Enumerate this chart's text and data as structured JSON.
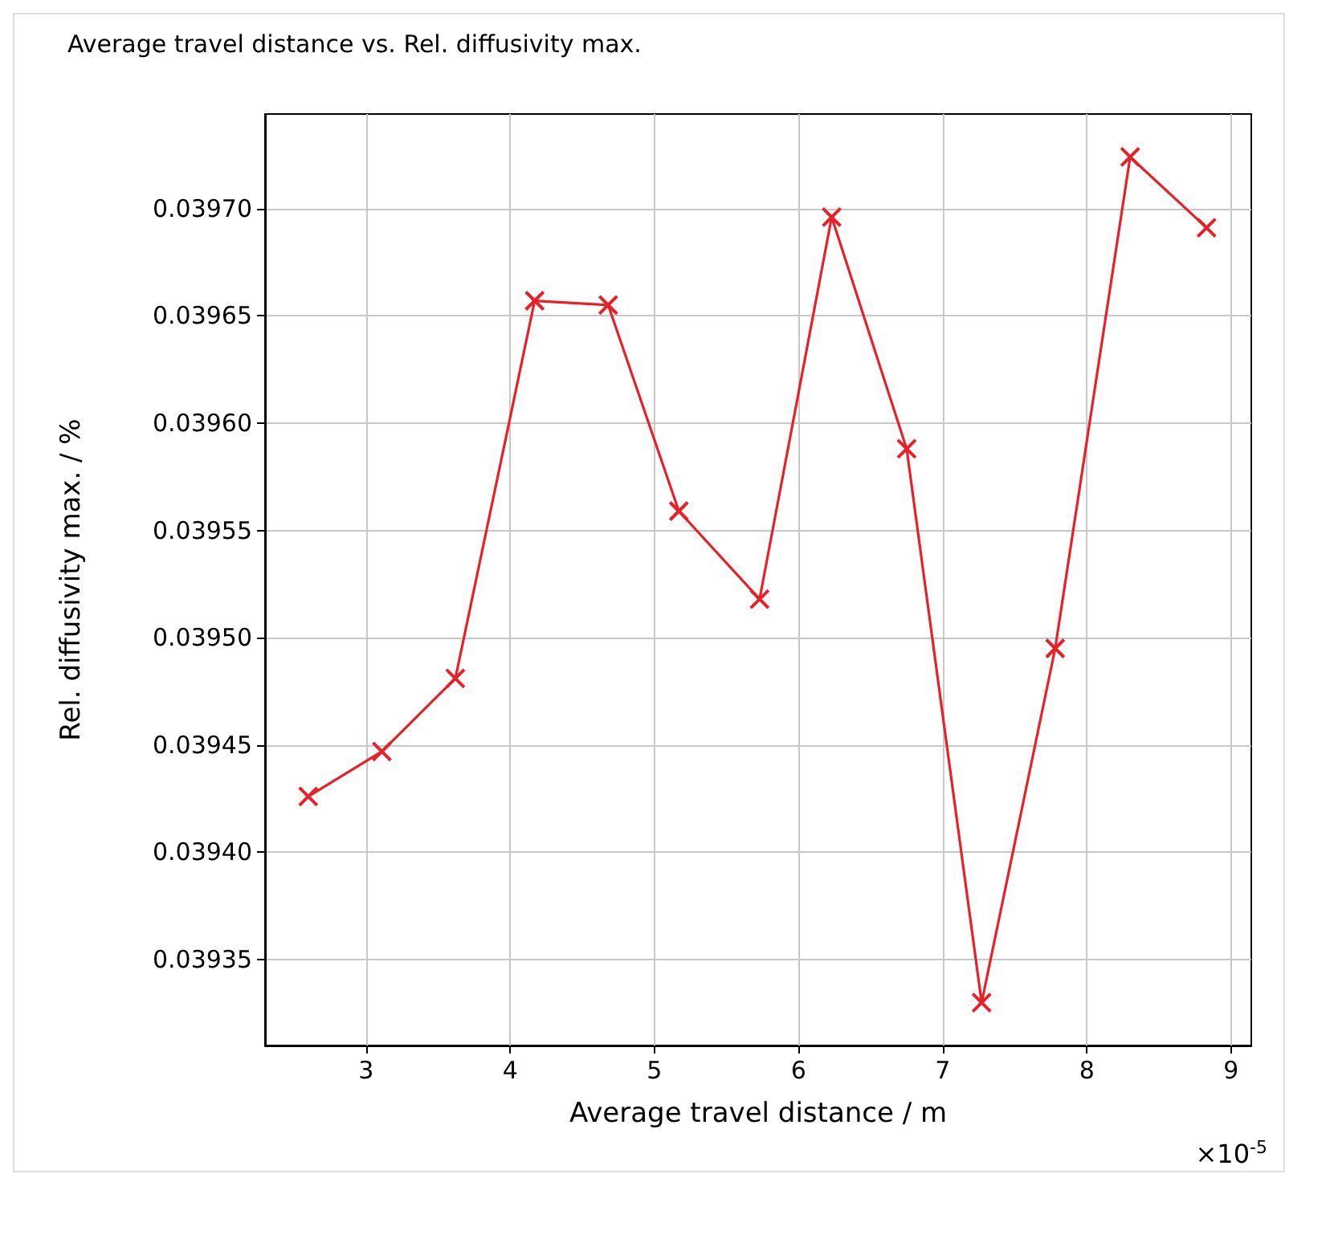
{
  "chart_data": {
    "type": "line",
    "title": "Average travel distance vs. Rel. diffusivity max.",
    "xlabel": "Average travel distance / m",
    "ylabel": "Rel. diffusivity max. / %",
    "annotations": [
      "×10$^{-5}$"
    ],
    "x": [
      2.6,
      3.11,
      3.62,
      4.17,
      4.68,
      5.17,
      5.73,
      6.23,
      6.75,
      7.27,
      7.78,
      8.3,
      8.83
    ],
    "series": [
      {
        "color": "#e8202a",
        "values": [
          0.039426,
          0.039447,
          0.039481,
          0.039657,
          0.039655,
          0.039559,
          0.039518,
          0.039696,
          0.039588,
          0.03933,
          0.039495,
          0.039724,
          0.039691
        ]
      }
    ],
    "xlim": [
      2.3,
      9.14
    ],
    "xticks": [
      3,
      4,
      5,
      6,
      7,
      8,
      9
    ],
    "ylim": [
      0.03931,
      0.039744
    ],
    "yticks": [
      {
        "value": 0.03935,
        "label": "0.03935"
      },
      {
        "value": 0.0394,
        "label": "0.03940"
      },
      {
        "value": 0.03945,
        "label": "0.03945"
      },
      {
        "value": 0.0395,
        "label": "0.03950"
      },
      {
        "value": 0.03955,
        "label": "0.03955"
      },
      {
        "value": 0.0396,
        "label": "0.03960"
      },
      {
        "value": 0.03965,
        "label": "0.03965"
      },
      {
        "value": 0.0397,
        "label": "0.03970"
      }
    ],
    "grid": true,
    "marker": "cross",
    "line_style": "solid"
  }
}
